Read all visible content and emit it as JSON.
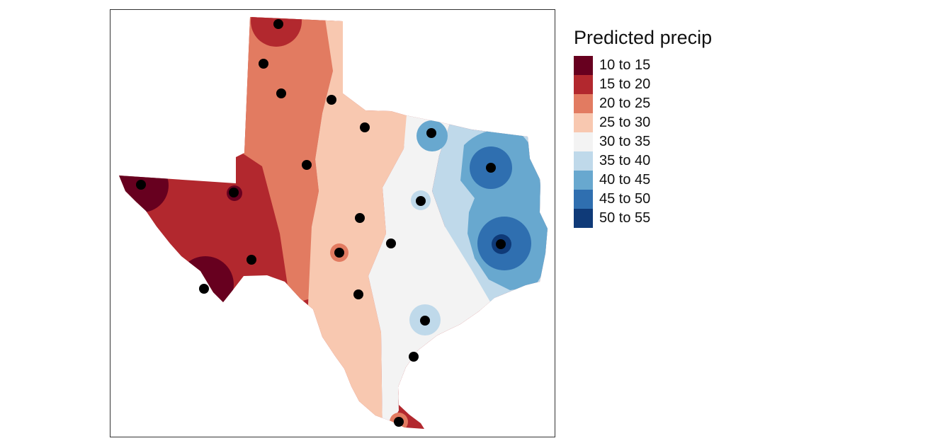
{
  "legend": {
    "title": "Predicted precip",
    "classes": [
      {
        "label": "10 to 15",
        "color": "#67001f"
      },
      {
        "label": "15 to 20",
        "color": "#b2282e"
      },
      {
        "label": "20 to 25",
        "color": "#e27b61"
      },
      {
        "label": "25 to 30",
        "color": "#f8c8b0"
      },
      {
        "label": "30 to 35",
        "color": "#f3f3f3"
      },
      {
        "label": "35 to 40",
        "color": "#bfd9ea"
      },
      {
        "label": "40 to 45",
        "color": "#68a8cf"
      },
      {
        "label": "45 to 50",
        "color": "#2f6fb0"
      },
      {
        "label": "50 to 55",
        "color": "#0f3a78"
      }
    ]
  },
  "map": {
    "subject": "Texas precipitation surface with weather station points",
    "station_count": 22,
    "station_color": "#000000"
  }
}
